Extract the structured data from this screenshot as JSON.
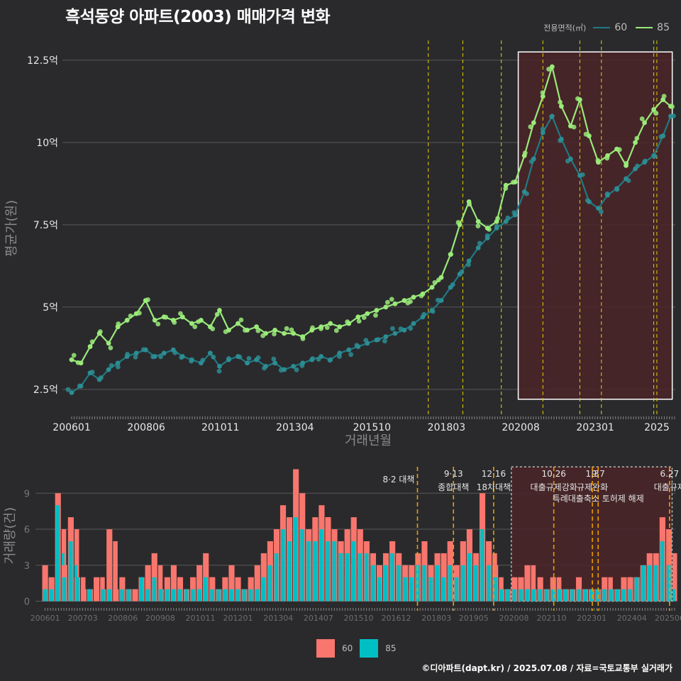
{
  "title": "흑석동양 아파트(2003) 매매가격 변화",
  "footer": "©디아파트(dapt.kr) / 2025.07.08 / 자료=국토교통부 실거래가",
  "colors": {
    "bg": "#2a2a2c",
    "grid": "#58585a",
    "s60_line": "#1f7a84",
    "s60_point": "#2c8d93",
    "s85": "#9aea7a",
    "bar60": "#f8766d",
    "bar85": "#00bfc4",
    "vline": "#e8d000",
    "shade": "#4a2428"
  },
  "legend_top": {
    "title": "전용면적(㎡)",
    "items": [
      "60",
      "85"
    ]
  },
  "legend_bottom": {
    "items": [
      "60",
      "85"
    ]
  },
  "chart_data": [
    {
      "type": "line",
      "ylabel": "평균가(원)",
      "xlabel": "거래년월",
      "y_ticks": [
        "2.5억",
        "5억",
        "7.5억",
        "10억",
        "12.5억"
      ],
      "y_tick_values": [
        2.5,
        5,
        7.5,
        10,
        12.5
      ],
      "ylim": [
        1.7,
        13.1
      ],
      "x_ticks": [
        "200601",
        "200806",
        "201011",
        "201304",
        "201510",
        "201803",
        "202008",
        "202301",
        "2025"
      ],
      "x_tick_values": [
        2006.0,
        2008.42,
        2010.83,
        2013.25,
        2015.75,
        2018.17,
        2020.58,
        2023.0,
        2025.0
      ],
      "xlim": [
        2005.7,
        2025.6
      ],
      "vlines": [
        2017.58,
        2018.7,
        2019.95,
        2021.3,
        2022.5,
        2023.2,
        2024.9,
        2025.0
      ],
      "highlight": [
        2020.5,
        2025.5,
        2.2,
        12.75
      ],
      "series": [
        {
          "name": "60",
          "x": [
            2006.0,
            2006.3,
            2006.6,
            2006.9,
            2007.2,
            2007.5,
            2007.8,
            2008.1,
            2008.4,
            2008.7,
            2009.0,
            2009.3,
            2009.6,
            2009.9,
            2010.2,
            2010.5,
            2010.8,
            2011.1,
            2011.4,
            2011.7,
            2012.0,
            2012.3,
            2012.6,
            2012.9,
            2013.2,
            2013.5,
            2013.8,
            2014.1,
            2014.4,
            2014.7,
            2015.0,
            2015.3,
            2015.6,
            2015.9,
            2016.2,
            2016.5,
            2016.8,
            2017.1,
            2017.4,
            2017.7,
            2018.0,
            2018.3,
            2018.6,
            2018.9,
            2019.2,
            2019.5,
            2019.8,
            2020.1,
            2020.4,
            2020.7,
            2021.0,
            2021.3,
            2021.6,
            2021.9,
            2022.2,
            2022.5,
            2022.8,
            2023.1,
            2023.4,
            2023.7,
            2024.0,
            2024.3,
            2024.6,
            2024.9,
            2025.2,
            2025.45
          ],
          "values": [
            2.4,
            2.6,
            3.0,
            2.8,
            3.1,
            3.3,
            3.5,
            3.6,
            3.7,
            3.5,
            3.6,
            3.7,
            3.5,
            3.4,
            3.3,
            3.6,
            3.2,
            3.4,
            3.5,
            3.3,
            3.4,
            3.2,
            3.3,
            3.1,
            3.2,
            3.3,
            3.4,
            3.5,
            3.4,
            3.6,
            3.7,
            3.8,
            3.9,
            4.0,
            4.1,
            4.2,
            4.3,
            4.5,
            4.7,
            4.9,
            5.2,
            5.6,
            6.0,
            6.4,
            6.8,
            7.1,
            7.4,
            7.6,
            7.8,
            8.5,
            9.5,
            10.3,
            10.8,
            10.1,
            9.5,
            9.0,
            8.2,
            8.0,
            8.4,
            8.6,
            8.9,
            9.2,
            9.4,
            9.6,
            10.2,
            10.8
          ]
        },
        {
          "name": "85",
          "x": [
            2006.0,
            2006.3,
            2006.6,
            2006.9,
            2007.2,
            2007.5,
            2007.8,
            2008.1,
            2008.4,
            2008.7,
            2009.0,
            2009.3,
            2009.6,
            2009.9,
            2010.2,
            2010.5,
            2010.8,
            2011.1,
            2011.4,
            2011.7,
            2012.0,
            2012.3,
            2012.6,
            2012.9,
            2013.2,
            2013.5,
            2013.8,
            2014.1,
            2014.4,
            2014.7,
            2015.0,
            2015.3,
            2015.6,
            2015.9,
            2016.2,
            2016.5,
            2016.8,
            2017.1,
            2017.4,
            2017.7,
            2018.0,
            2018.3,
            2018.6,
            2018.9,
            2019.2,
            2019.5,
            2019.8,
            2020.1,
            2020.4,
            2020.7,
            2021.0,
            2021.3,
            2021.6,
            2021.9,
            2022.2,
            2022.5,
            2022.8,
            2023.1,
            2023.4,
            2023.7,
            2024.0,
            2024.3,
            2024.6,
            2024.9,
            2025.2,
            2025.45
          ],
          "values": [
            3.4,
            3.3,
            3.8,
            4.2,
            3.9,
            4.4,
            4.6,
            4.8,
            5.2,
            4.6,
            4.7,
            4.6,
            4.7,
            4.5,
            4.6,
            4.4,
            4.9,
            4.3,
            4.5,
            4.3,
            4.4,
            4.2,
            4.3,
            4.2,
            4.2,
            4.1,
            4.3,
            4.4,
            4.5,
            4.4,
            4.5,
            4.7,
            4.8,
            4.9,
            5.0,
            5.1,
            5.2,
            5.3,
            5.4,
            5.6,
            5.9,
            6.6,
            7.5,
            8.2,
            7.6,
            7.4,
            7.6,
            8.7,
            8.8,
            9.6,
            10.6,
            11.4,
            12.3,
            11.1,
            10.5,
            11.3,
            10.2,
            9.4,
            9.6,
            9.8,
            9.3,
            10.0,
            10.6,
            11.0,
            11.3,
            11.1
          ]
        }
      ]
    },
    {
      "type": "bar",
      "ylabel": "거래량(건)",
      "y_ticks": [
        "0",
        "3",
        "6",
        "9"
      ],
      "y_tick_values": [
        0,
        3,
        6,
        9
      ],
      "ylim": [
        -0.5,
        11.5
      ],
      "x_ticks": [
        "200601",
        "200703",
        "200806",
        "200908",
        "201011",
        "201201",
        "201304",
        "201407",
        "201510",
        "201612",
        "201803",
        "201905",
        "202008",
        "202110",
        "202301",
        "202404",
        "202506"
      ],
      "x_tick_values": [
        2006.0,
        2007.17,
        2008.42,
        2009.58,
        2010.83,
        2012.0,
        2013.25,
        2014.5,
        2015.75,
        2016.92,
        2018.17,
        2019.33,
        2020.58,
        2021.75,
        2023.0,
        2024.25,
        2025.42
      ],
      "xlim": [
        2005.7,
        2025.6
      ],
      "bar_width_years": 0.075,
      "highlight": [
        2020.5,
        2025.5,
        0,
        11.2
      ],
      "policy_events": [
        {
          "x": 2017.58,
          "date": "8·2",
          "label": "대책"
        },
        {
          "x": 2018.7,
          "date": "9·13",
          "label": "종합대책"
        },
        {
          "x": 2019.95,
          "date": "12·16",
          "label": "18차대책"
        },
        {
          "x": 2021.82,
          "date": "10.26",
          "label": "대출규제강화"
        },
        {
          "x": 2023.02,
          "date": "1.3",
          "label": "규제완화"
        },
        {
          "x": 2023.2,
          "date": "9.7",
          "label": "특례대출축소 토허제 해제"
        },
        {
          "x": 2025.42,
          "date": "6.27",
          "label": "대출규제"
        }
      ],
      "series": [
        {
          "name": "60",
          "x": [
            2006.0,
            2006.2,
            2006.4,
            2006.6,
            2006.8,
            2007.0,
            2007.2,
            2007.4,
            2007.6,
            2007.8,
            2008.0,
            2008.2,
            2008.4,
            2008.6,
            2008.8,
            2009.0,
            2009.2,
            2009.4,
            2009.6,
            2009.8,
            2010.0,
            2010.2,
            2010.4,
            2010.6,
            2010.8,
            2011.0,
            2011.2,
            2011.4,
            2011.6,
            2011.8,
            2012.0,
            2012.2,
            2012.4,
            2012.6,
            2012.8,
            2013.0,
            2013.2,
            2013.4,
            2013.6,
            2013.8,
            2014.0,
            2014.2,
            2014.4,
            2014.6,
            2014.8,
            2015.0,
            2015.2,
            2015.4,
            2015.6,
            2015.8,
            2016.0,
            2016.2,
            2016.4,
            2016.6,
            2016.8,
            2017.0,
            2017.2,
            2017.4,
            2017.6,
            2017.8,
            2018.0,
            2018.2,
            2018.4,
            2018.6,
            2018.8,
            2019.0,
            2019.2,
            2019.4,
            2019.6,
            2019.8,
            2020.0,
            2020.2,
            2020.4,
            2020.6,
            2020.8,
            2021.0,
            2021.2,
            2021.4,
            2021.6,
            2021.8,
            2022.0,
            2022.2,
            2022.4,
            2022.6,
            2022.8,
            2023.0,
            2023.2,
            2023.4,
            2023.6,
            2023.8,
            2024.0,
            2024.2,
            2024.4,
            2024.6,
            2024.8,
            2025.0,
            2025.2,
            2025.4
          ],
          "values": [
            3,
            2,
            9,
            3,
            7,
            2,
            1,
            1,
            2,
            1,
            6,
            1,
            2,
            1,
            1,
            2,
            3,
            4,
            1,
            2,
            3,
            2,
            1,
            2,
            3,
            4,
            2,
            1,
            2,
            3,
            2,
            1,
            2,
            3,
            4,
            5,
            6,
            8,
            7,
            11,
            9,
            6,
            7,
            8,
            7,
            6,
            5,
            6,
            7,
            6,
            5,
            4,
            3,
            4,
            5,
            4,
            3,
            3,
            4,
            5,
            3,
            4,
            4,
            5,
            3,
            5,
            6,
            4,
            9,
            5,
            3,
            1,
            1,
            2,
            2,
            3,
            1,
            2,
            1,
            2,
            1,
            1,
            1,
            2,
            1,
            1,
            1,
            2,
            1,
            1,
            2,
            2,
            2,
            3,
            4,
            4,
            7,
            6
          ]
        },
        {
          "name": "85",
          "x": [
            2006.0,
            2006.2,
            2006.4,
            2006.6,
            2006.8,
            2007.0,
            2007.2,
            2007.4,
            2007.6,
            2007.8,
            2008.0,
            2008.2,
            2008.4,
            2008.6,
            2008.8,
            2009.0,
            2009.2,
            2009.4,
            2009.6,
            2009.8,
            2010.0,
            2010.2,
            2010.4,
            2010.6,
            2010.8,
            2011.0,
            2011.2,
            2011.4,
            2011.6,
            2011.8,
            2012.0,
            2012.2,
            2012.4,
            2012.6,
            2012.8,
            2013.0,
            2013.2,
            2013.4,
            2013.6,
            2013.8,
            2014.0,
            2014.2,
            2014.4,
            2014.6,
            2014.8,
            2015.0,
            2015.2,
            2015.4,
            2015.6,
            2015.8,
            2016.0,
            2016.2,
            2016.4,
            2016.6,
            2016.8,
            2017.0,
            2017.2,
            2017.4,
            2017.6,
            2017.8,
            2018.0,
            2018.2,
            2018.4,
            2018.6,
            2018.8,
            2019.0,
            2019.2,
            2019.4,
            2019.6,
            2019.8,
            2020.0,
            2020.2,
            2020.4,
            2020.6,
            2020.8,
            2021.0,
            2021.2,
            2021.4,
            2021.6,
            2021.8,
            2022.0,
            2022.2,
            2022.4,
            2022.6,
            2022.8,
            2023.0,
            2023.2,
            2023.4,
            2023.6,
            2023.8,
            2024.0,
            2024.2,
            2024.4,
            2024.6,
            2024.8,
            2025.0,
            2025.2,
            2025.4
          ],
          "values": [
            1,
            1,
            8,
            2,
            5,
            2,
            0,
            1,
            0,
            1,
            1,
            0,
            1,
            1,
            0,
            2,
            1,
            2,
            1,
            1,
            1,
            1,
            1,
            1,
            1,
            2,
            1,
            1,
            1,
            1,
            1,
            1,
            1,
            1,
            2,
            3,
            4,
            6,
            5,
            7,
            6,
            5,
            5,
            6,
            5,
            5,
            4,
            4,
            5,
            4,
            4,
            3,
            2,
            3,
            4,
            3,
            2,
            2,
            3,
            3,
            2,
            3,
            2,
            3,
            2,
            3,
            4,
            3,
            6,
            3,
            2,
            1,
            1,
            1,
            1,
            1,
            1,
            1,
            1,
            1,
            1,
            1,
            1,
            1,
            1,
            1,
            1,
            1,
            1,
            1,
            1,
            1,
            2,
            3,
            3,
            3,
            5,
            3
          ]
        }
      ]
    }
  ]
}
